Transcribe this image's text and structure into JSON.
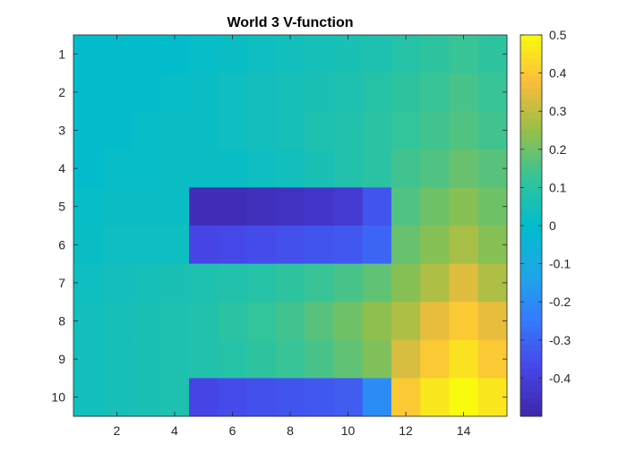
{
  "chart_data": {
    "type": "heatmap",
    "title": "World 3 V-function",
    "xlabel": "",
    "ylabel": "",
    "x_ticks": [
      2,
      4,
      6,
      8,
      10,
      12,
      14
    ],
    "y_ticks": [
      1,
      2,
      3,
      4,
      5,
      6,
      7,
      8,
      9,
      10
    ],
    "x_range": [
      0.5,
      15.5
    ],
    "y_range": [
      0.5,
      10.5
    ],
    "y_direction": "reverse",
    "colormap": "parula",
    "clim": [
      -0.5,
      0.5
    ],
    "colorbar_ticks": [
      0.5,
      0.4,
      0.3,
      0.2,
      0.1,
      0,
      -0.1,
      -0.2,
      -0.3,
      -0.4
    ],
    "colorbar_tick_labels": [
      "0.5",
      "0.4",
      "0.3",
      "0.2",
      "0.1",
      "0",
      "-0.1",
      "-0.2",
      "-0.3",
      "-0.4"
    ],
    "values": [
      [
        0.0,
        0.0,
        0.0,
        0.0,
        0.01,
        0.02,
        0.03,
        0.04,
        0.05,
        0.06,
        0.07,
        0.09,
        0.11,
        0.13,
        0.11
      ],
      [
        0.0,
        0.0,
        0.0,
        0.01,
        0.02,
        0.03,
        0.04,
        0.05,
        0.06,
        0.07,
        0.09,
        0.11,
        0.13,
        0.15,
        0.13
      ],
      [
        0.0,
        0.0,
        0.01,
        0.02,
        0.02,
        0.03,
        0.04,
        0.05,
        0.07,
        0.08,
        0.1,
        0.12,
        0.14,
        0.16,
        0.14
      ],
      [
        0.0,
        0.01,
        0.01,
        0.02,
        0.02,
        0.02,
        0.03,
        0.04,
        0.06,
        0.08,
        0.1,
        0.14,
        0.16,
        0.19,
        0.17
      ],
      [
        0.01,
        0.02,
        0.02,
        0.02,
        -0.47,
        -0.47,
        -0.46,
        -0.45,
        -0.44,
        -0.42,
        -0.34,
        0.16,
        0.2,
        0.23,
        0.2
      ],
      [
        0.02,
        0.03,
        0.03,
        0.03,
        -0.38,
        -0.37,
        -0.36,
        -0.35,
        -0.34,
        -0.33,
        -0.3,
        0.19,
        0.23,
        0.27,
        0.23
      ],
      [
        0.03,
        0.04,
        0.05,
        0.06,
        0.07,
        0.08,
        0.09,
        0.11,
        0.13,
        0.15,
        0.18,
        0.23,
        0.28,
        0.34,
        0.28
      ],
      [
        0.04,
        0.05,
        0.06,
        0.07,
        0.08,
        0.1,
        0.12,
        0.14,
        0.17,
        0.2,
        0.24,
        0.28,
        0.35,
        0.4,
        0.35
      ],
      [
        0.04,
        0.05,
        0.06,
        0.07,
        0.08,
        0.09,
        0.11,
        0.13,
        0.15,
        0.18,
        0.22,
        0.33,
        0.4,
        0.45,
        0.4
      ],
      [
        0.04,
        0.05,
        0.06,
        0.07,
        -0.38,
        -0.36,
        -0.35,
        -0.34,
        -0.33,
        -0.32,
        -0.2,
        0.4,
        0.46,
        0.5,
        0.46
      ]
    ]
  }
}
